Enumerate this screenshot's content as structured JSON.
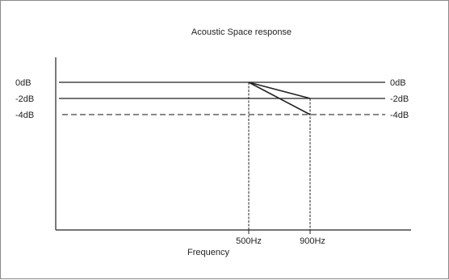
{
  "diagram": {
    "title": "Acoustic Space response",
    "x_axis_label": "Frequency",
    "levels": [
      {
        "label_left": "0dB",
        "label_right": "0dB",
        "value_db": 0,
        "style": "solid"
      },
      {
        "label_left": "-2dB",
        "label_right": "-2dB",
        "value_db": -2,
        "style": "solid"
      },
      {
        "label_left": "-4dB",
        "label_right": "-4dB",
        "value_db": -4,
        "style": "dashed"
      }
    ],
    "frequency_markers": [
      {
        "label": "500Hz",
        "value_hz": 500
      },
      {
        "label": "900Hz",
        "value_hz": 900
      }
    ],
    "slopes": [
      {
        "from_hz": 500,
        "from_db": 0,
        "to_hz": 900,
        "to_db": -2
      },
      {
        "from_hz": 500,
        "from_db": 0,
        "to_hz": 900,
        "to_db": -4
      }
    ],
    "colors": {
      "line": "#222222",
      "dashed": "#888888",
      "border": "#8a8a8a"
    }
  }
}
